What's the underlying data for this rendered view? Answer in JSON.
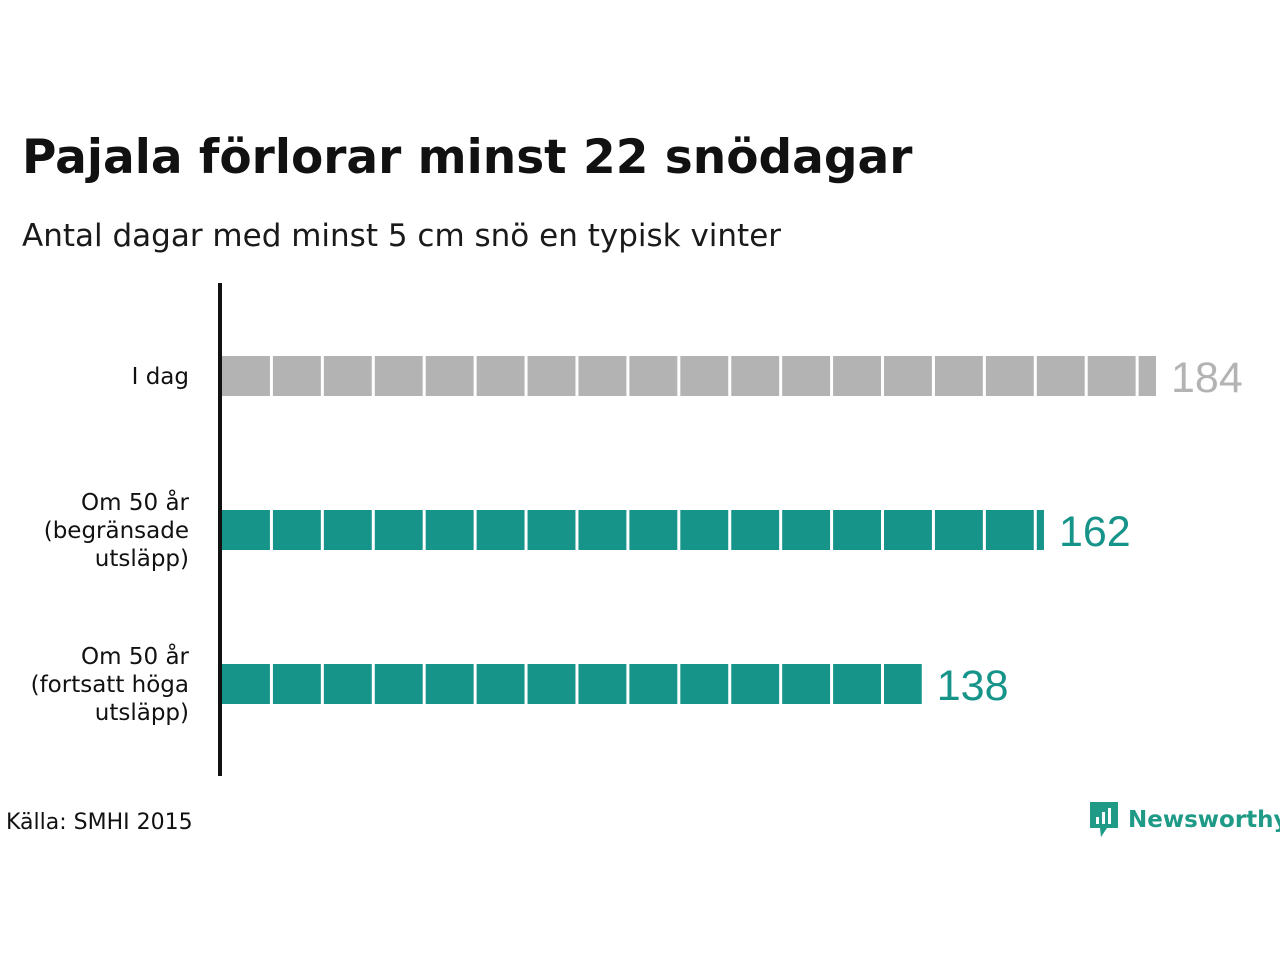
{
  "title": "Pajala förlorar minst 22 snödagar",
  "subtitle": "Antal dagar med minst 5 cm snö en typisk vinter",
  "source": "Källa: SMHI 2015",
  "brand": {
    "name": "Newsworthy",
    "icon": "newsworthy-logo-icon",
    "color": "#1e9a87"
  },
  "chart_data": {
    "type": "bar",
    "orientation": "horizontal",
    "unit_per_block": 10,
    "categories": [
      [
        "I dag"
      ],
      [
        "Om 50 år",
        "(begränsade",
        "utsläpp)"
      ],
      [
        "Om 50 år",
        "(fortsatt höga",
        "utsläpp)"
      ]
    ],
    "values": [
      184,
      162,
      138
    ],
    "colors": [
      "#b3b3b3",
      "#16948a",
      "#16948a"
    ],
    "xlim": [
      0,
      184
    ]
  }
}
